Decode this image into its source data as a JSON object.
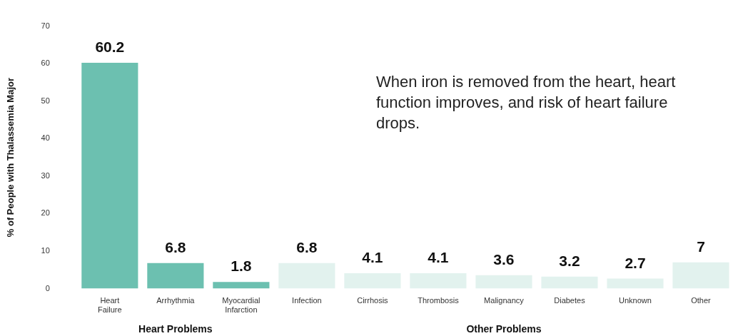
{
  "chart_data": {
    "type": "bar",
    "ylabel": "% of People with Thalassemia Major",
    "annotations": [
      "When iron is removed from the heart, heart function improves, and risk of heart failure drops."
    ],
    "categories": [
      "Heart Failure",
      "Arrhythmia",
      "Myocardial Infarction",
      "Infection",
      "Cirrhosis",
      "Thrombosis",
      "Malignancy",
      "Diabetes",
      "Unknown",
      "Other"
    ],
    "values": [
      60.2,
      6.8,
      1.8,
      6.8,
      4.1,
      4.1,
      3.6,
      3.2,
      2.7,
      7
    ],
    "colors": [
      "#6cc0b0",
      "#6cc0b0",
      "#6cc0b0",
      "#e2f2ee",
      "#e2f2ee",
      "#e2f2ee",
      "#e2f2ee",
      "#e2f2ee",
      "#e2f2ee",
      "#e2f2ee"
    ],
    "groups": [
      "Heart Problems",
      "Heart Problems",
      "Heart Problems",
      "Other Problems",
      "Other Problems",
      "Other Problems",
      "Other Problems",
      "Other Problems",
      "Other Problems",
      "Other Problems"
    ],
    "ylim": [
      0,
      70
    ],
    "yticks": [
      0,
      10,
      20,
      30,
      40,
      50,
      60,
      70
    ],
    "grid": false,
    "data_labels": true
  }
}
